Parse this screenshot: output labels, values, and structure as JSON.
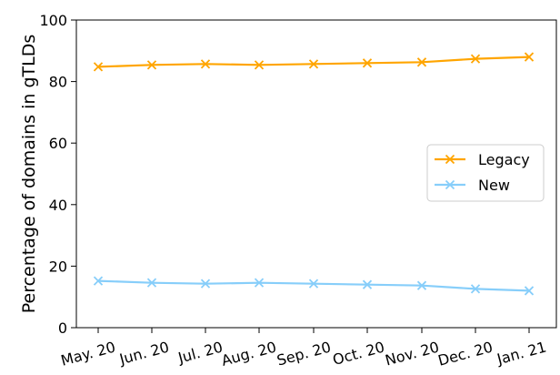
{
  "chart_data": {
    "type": "line",
    "title": "",
    "xlabel": "",
    "ylabel": "Percentage of domains in gTLDs",
    "ylim": [
      0,
      100
    ],
    "yticks": [
      0,
      20,
      40,
      60,
      80,
      100
    ],
    "categories": [
      "May. 20",
      "Jun. 20",
      "Jul. 20",
      "Aug. 20",
      "Sep. 20",
      "Oct. 20",
      "Nov. 20",
      "Dec. 20",
      "Jan. 21"
    ],
    "series": [
      {
        "name": "Legacy",
        "color": "#FFA500",
        "marker": "x",
        "values": [
          84.8,
          85.4,
          85.7,
          85.4,
          85.7,
          86.0,
          86.3,
          87.4,
          88.0
        ]
      },
      {
        "name": "New",
        "color": "#87CEFA",
        "marker": "x",
        "values": [
          15.2,
          14.6,
          14.3,
          14.6,
          14.3,
          14.0,
          13.7,
          12.6,
          12.0
        ]
      }
    ],
    "grid": false,
    "legend_position": "center-right"
  }
}
